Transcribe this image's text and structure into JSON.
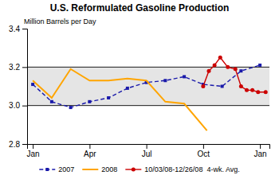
{
  "chart_data": {
    "type": "line",
    "title": "U.S. Reformulated Gasoline Production",
    "y_label": "Million Barrels per Day",
    "xlim": [
      -0.3,
      12.5
    ],
    "xticks": [
      {
        "value": 0,
        "label": "Jan"
      },
      {
        "value": 3,
        "label": "Apr"
      },
      {
        "value": 6,
        "label": "Jul"
      },
      {
        "value": 9,
        "label": "Oct"
      },
      {
        "value": 12,
        "label": "Jan"
      }
    ],
    "ylim": [
      2.8,
      3.4
    ],
    "yticks": [
      2.8,
      {
        "value": 3.0,
        "label": "3.0"
      },
      3.2,
      3.4
    ],
    "hlines": [
      3.0,
      3.2
    ],
    "grid": false,
    "legend": "bottom",
    "series": [
      {
        "name": "2007",
        "color": "#1a1aaa",
        "marker": "square",
        "line_style": "dashed",
        "x": [
          0,
          1,
          2,
          3,
          4,
          5,
          6,
          7,
          8,
          9,
          10,
          11,
          12
        ],
        "values": [
          3.11,
          3.02,
          2.99,
          3.02,
          3.04,
          3.09,
          3.12,
          3.13,
          3.15,
          3.11,
          3.1,
          3.18,
          3.21
        ]
      },
      {
        "name": "2008",
        "color": "#ffa500",
        "line_style": "solid",
        "x": [
          0,
          1,
          2,
          3,
          4,
          5,
          6,
          7,
          8,
          9.2
        ],
        "values": [
          3.13,
          3.04,
          3.19,
          3.13,
          3.13,
          3.14,
          3.13,
          3.02,
          3.01,
          2.87
        ]
      },
      {
        "name": "10/03/08-12/26/08  4-wk. Avg.",
        "color": "#cc0000",
        "marker": "circle",
        "line_style": "solid",
        "x": [
          9.0,
          9.3,
          9.6,
          9.9,
          10.3,
          10.7,
          11.0,
          11.3,
          11.6,
          11.9,
          12.3
        ],
        "values": [
          3.1,
          3.18,
          3.21,
          3.25,
          3.2,
          3.19,
          3.1,
          3.08,
          3.08,
          3.07,
          3.07
        ]
      }
    ]
  }
}
